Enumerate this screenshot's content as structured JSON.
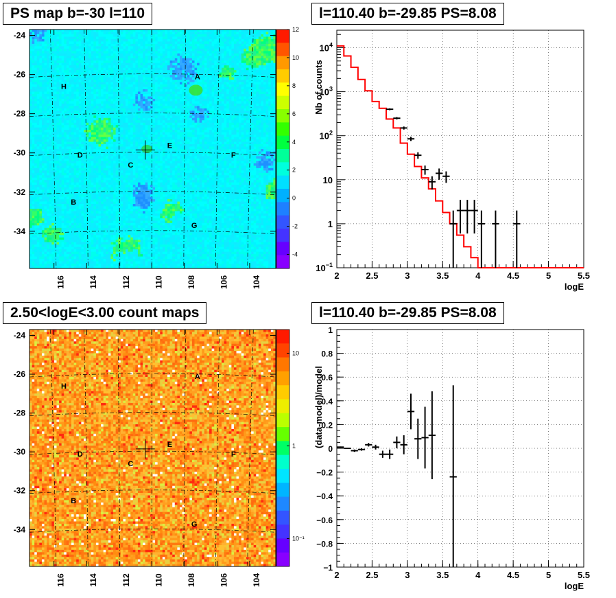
{
  "panels": {
    "ps_map": {
      "title": "PS map b=-30 l=110",
      "y_ticks": [
        "-24",
        "-26",
        "-28",
        "-30",
        "-32",
        "-34"
      ],
      "x_ticks": [
        "116",
        "114",
        "112",
        "110",
        "108",
        "106",
        "104"
      ],
      "colorbar_ticks": [
        "12",
        "10",
        "8",
        "6",
        "4",
        "2",
        "0",
        "-2",
        "-4"
      ],
      "sources": [
        {
          "label": "A",
          "lon": 107.2,
          "lat": -26.1
        },
        {
          "label": "H",
          "lon": 115.4,
          "lat": -26.6
        },
        {
          "label": "E",
          "lon": 108.9,
          "lat": -29.6
        },
        {
          "label": "D",
          "lon": 114.4,
          "lat": -30.1
        },
        {
          "label": "F",
          "lon": 105.0,
          "lat": -30.1
        },
        {
          "label": "C",
          "lon": 111.3,
          "lat": -30.6
        },
        {
          "label": "B",
          "lon": 114.8,
          "lat": -32.5
        },
        {
          "label": "G",
          "lon": 107.4,
          "lat": -33.7
        }
      ],
      "peak": {
        "lon": 110.4,
        "lat": -29.85
      }
    },
    "count_map": {
      "title": "2.50<logE<3.00 count maps",
      "y_ticks": [
        "-24",
        "-26",
        "-28",
        "-30",
        "-32",
        "-34"
      ],
      "x_ticks": [
        "116",
        "114",
        "112",
        "110",
        "108",
        "106",
        "104"
      ],
      "colorbar_ticks": [
        "10",
        "1",
        "10⁻¹"
      ],
      "sources": [
        {
          "label": "A",
          "lon": 107.2,
          "lat": -26.1
        },
        {
          "label": "H",
          "lon": 115.4,
          "lat": -26.6
        },
        {
          "label": "E",
          "lon": 108.9,
          "lat": -29.6
        },
        {
          "label": "D",
          "lon": 114.4,
          "lat": -30.1
        },
        {
          "label": "F",
          "lon": 105.0,
          "lat": -30.1
        },
        {
          "label": "C",
          "lon": 111.3,
          "lat": -30.6
        },
        {
          "label": "B",
          "lon": 114.8,
          "lat": -32.5
        },
        {
          "label": "G",
          "lon": 107.4,
          "lat": -33.7
        }
      ],
      "peak": {
        "lon": 110.4,
        "lat": -29.85
      }
    },
    "spectrum": {
      "title": "l=110.40 b=-29.85 PS=8.08"
    },
    "residual": {
      "title": "l=110.40 b=-29.85 PS=8.08"
    }
  },
  "chart_data": [
    {
      "type": "heatmap",
      "title": "PS map b=-30 l=110",
      "xlim": [
        117.5,
        102.4
      ],
      "ylim": [
        -35.9,
        -23.7
      ],
      "zlim": [
        -5,
        12
      ],
      "palette": [
        "#7f00ff",
        "#3c3cff",
        "#1e90ff",
        "#00e5ff",
        "#00ff80",
        "#33dd00",
        "#aaee00",
        "#ffff00",
        "#ff9900",
        "#ff3300"
      ],
      "background_level": "cyan (approx. 0-1)"
    },
    {
      "type": "heatmap",
      "title": "2.50<logE<3.00 count maps",
      "xlim": [
        117.5,
        102.4
      ],
      "ylim": [
        -35.9,
        -23.7
      ],
      "z_scale": "log",
      "zlim": [
        0.05,
        18
      ]
    },
    {
      "type": "scatter",
      "title": "l=110.40 b=-29.85 PS=8.08",
      "xlabel": "logE",
      "ylabel": "Nb of counts",
      "xlim": [
        2,
        5.5
      ],
      "ylim": [
        0.1,
        25000
      ],
      "y_scale": "log",
      "x_ticks": [
        "2",
        "2.5",
        "3",
        "3.5",
        "4",
        "4.5",
        "5",
        "5.5"
      ],
      "y_ticks": [
        {
          "v": 10000,
          "base": "10",
          "exp": "4"
        },
        {
          "v": 1000,
          "base": "10",
          "exp": "3"
        },
        {
          "v": 100,
          "base": "10",
          "exp": "2"
        },
        {
          "v": 10,
          "base": "10",
          "exp": ""
        },
        {
          "v": 1,
          "base": "1",
          "exp": ""
        },
        {
          "v": 0.1,
          "base": "10",
          "exp": "−1"
        }
      ],
      "grid": true,
      "model_step": {
        "edges": [
          2.0,
          2.1,
          2.2,
          2.3,
          2.4,
          2.5,
          2.6,
          2.7,
          2.8,
          2.9,
          3.0,
          3.1,
          3.2,
          3.3,
          3.4,
          3.5,
          3.6,
          3.7,
          3.8,
          3.9,
          4.0,
          4.1,
          4.2,
          4.3,
          4.4,
          4.5,
          4.6,
          4.7,
          4.8,
          4.9,
          5.0,
          5.1,
          5.2,
          5.3,
          5.4,
          5.5
        ],
        "values": [
          11000,
          6500,
          3600,
          1900,
          1050,
          600,
          420,
          240,
          150,
          68,
          38,
          20,
          11,
          6.2,
          3.3,
          1.8,
          1.0,
          0.55,
          0.3,
          0.17,
          0.1,
          0.1,
          0.1,
          0.1,
          0.1,
          0.1,
          0.1,
          0.1,
          0.1,
          0.1,
          0.1,
          0.1,
          0.1,
          0.1,
          0.1
        ],
        "color": "#ff0000"
      },
      "data_points": [
        {
          "x": 2.75,
          "y": 400,
          "lo": 380,
          "hi": 420
        },
        {
          "x": 2.85,
          "y": 250,
          "lo": 235,
          "hi": 265
        },
        {
          "x": 2.95,
          "y": 150,
          "lo": 138,
          "hi": 162
        },
        {
          "x": 3.05,
          "y": 85,
          "lo": 76,
          "hi": 95
        },
        {
          "x": 3.15,
          "y": 36,
          "lo": 30,
          "hi": 42
        },
        {
          "x": 3.25,
          "y": 17,
          "lo": 13,
          "hi": 21
        },
        {
          "x": 3.35,
          "y": 9,
          "lo": 6,
          "hi": 12
        },
        {
          "x": 3.45,
          "y": 14,
          "lo": 10,
          "hi": 18
        },
        {
          "x": 3.55,
          "y": 12,
          "lo": 8.5,
          "hi": 15.5
        },
        {
          "x": 3.65,
          "y": 1,
          "lo": 0.1,
          "hi": 2
        },
        {
          "x": 3.75,
          "y": 2,
          "lo": 0.6,
          "hi": 3.5
        },
        {
          "x": 3.85,
          "y": 2,
          "lo": 0.6,
          "hi": 3.5
        },
        {
          "x": 3.95,
          "y": 2,
          "lo": 0.6,
          "hi": 3.5
        },
        {
          "x": 4.05,
          "y": 1,
          "lo": 0.1,
          "hi": 2
        },
        {
          "x": 4.25,
          "y": 1,
          "lo": 0.1,
          "hi": 2
        },
        {
          "x": 4.55,
          "y": 1,
          "lo": 0.1,
          "hi": 2
        }
      ],
      "bin_half_width": 0.05
    },
    {
      "type": "scatter",
      "title": "l=110.40 b=-29.85 PS=8.08",
      "xlabel": "logE",
      "ylabel": "(data-model)/model",
      "xlim": [
        2,
        5.5
      ],
      "ylim": [
        -1,
        1
      ],
      "x_ticks": [
        "2",
        "2.5",
        "3",
        "3.5",
        "4",
        "4.5",
        "5",
        "5.5"
      ],
      "y_ticks": [
        "1",
        "0.8",
        "0.6",
        "0.4",
        "0.2",
        "0",
        "−0.2",
        "−0.4",
        "−0.6",
        "−0.8",
        "−1"
      ],
      "grid": true,
      "data_points": [
        {
          "x": 2.05,
          "y": 0.01,
          "err": 0.005
        },
        {
          "x": 2.15,
          "y": 0.0,
          "err": 0.005
        },
        {
          "x": 2.25,
          "y": -0.02,
          "err": 0.01
        },
        {
          "x": 2.35,
          "y": -0.01,
          "err": 0.01
        },
        {
          "x": 2.45,
          "y": 0.03,
          "err": 0.015
        },
        {
          "x": 2.55,
          "y": 0.01,
          "err": 0.02
        },
        {
          "x": 2.65,
          "y": -0.05,
          "err": 0.03
        },
        {
          "x": 2.75,
          "y": -0.05,
          "err": 0.04
        },
        {
          "x": 2.85,
          "y": 0.05,
          "err": 0.05
        },
        {
          "x": 2.95,
          "y": 0.03,
          "err": 0.08
        },
        {
          "x": 3.05,
          "y": 0.31,
          "err": 0.15
        },
        {
          "x": 3.15,
          "y": 0.08,
          "err": 0.17
        },
        {
          "x": 3.25,
          "y": 0.09,
          "err": 0.26
        },
        {
          "x": 3.35,
          "y": 0.11,
          "err": 0.37
        },
        {
          "x": 3.65,
          "y": -0.24,
          "err": 0.77
        }
      ],
      "bin_half_width": 0.05
    }
  ]
}
